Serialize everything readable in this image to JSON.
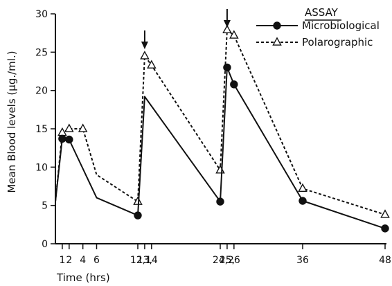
{
  "chart_data": {
    "type": "line",
    "title": "",
    "xlabel": "Time (hrs)",
    "ylabel": "Mean Blood levels (μg./ml.)",
    "xlim": [
      0,
      48
    ],
    "ylim": [
      0,
      30
    ],
    "grid": false,
    "legend_title": "ASSAY",
    "legend_position": "top-right",
    "x_ticks": [
      {
        "value": 1,
        "label": "1"
      },
      {
        "value": 2,
        "label": "2"
      },
      {
        "value": 4,
        "label": "4"
      },
      {
        "value": 6,
        "label": "6"
      },
      {
        "value": 12,
        "label": "12,"
      },
      {
        "value": 13,
        "label": "13,"
      },
      {
        "value": 14,
        "label": "14"
      },
      {
        "value": 24,
        "label": "24,"
      },
      {
        "value": 25,
        "label": "25,"
      },
      {
        "value": 26,
        "label": "26"
      },
      {
        "value": 36,
        "label": "36"
      },
      {
        "value": 48,
        "label": "48"
      }
    ],
    "y_ticks": [
      0,
      5,
      10,
      15,
      20,
      25,
      30
    ],
    "dose_arrows": [
      13,
      25
    ],
    "series": [
      {
        "name": "Microbiological",
        "marker": "filled-circle",
        "line_style": "solid",
        "points": [
          {
            "x": 0,
            "y": 5.5,
            "marker": false
          },
          {
            "x": 1,
            "y": 13.7,
            "marker": true
          },
          {
            "x": 2,
            "y": 13.6,
            "marker": true
          },
          {
            "x": 6,
            "y": 6.0,
            "marker": false
          },
          {
            "x": 12,
            "y": 3.7,
            "marker": true
          },
          {
            "x": 13,
            "y": 19.2,
            "marker": false
          },
          {
            "x": 24,
            "y": 5.5,
            "marker": true
          },
          {
            "x": 25,
            "y": 23.0,
            "marker": true
          },
          {
            "x": 26,
            "y": 20.8,
            "marker": true
          },
          {
            "x": 36,
            "y": 5.6,
            "marker": true
          },
          {
            "x": 48,
            "y": 2.0,
            "marker": true
          }
        ]
      },
      {
        "name": "Polarographic",
        "marker": "open-triangle",
        "line_style": "dashed",
        "points": [
          {
            "x": 0,
            "y": 5.5,
            "marker": false
          },
          {
            "x": 1,
            "y": 14.5,
            "marker": true
          },
          {
            "x": 2,
            "y": 15.0,
            "marker": true
          },
          {
            "x": 4,
            "y": 15.0,
            "marker": true
          },
          {
            "x": 6,
            "y": 9.0,
            "marker": false
          },
          {
            "x": 12,
            "y": 5.5,
            "marker": true
          },
          {
            "x": 13,
            "y": 24.5,
            "marker": true
          },
          {
            "x": 14,
            "y": 23.3,
            "marker": true
          },
          {
            "x": 24,
            "y": 9.6,
            "marker": true
          },
          {
            "x": 25,
            "y": 27.9,
            "marker": true
          },
          {
            "x": 26,
            "y": 27.2,
            "marker": true
          },
          {
            "x": 36,
            "y": 7.2,
            "marker": true
          },
          {
            "x": 48,
            "y": 3.8,
            "marker": true
          }
        ]
      }
    ]
  }
}
